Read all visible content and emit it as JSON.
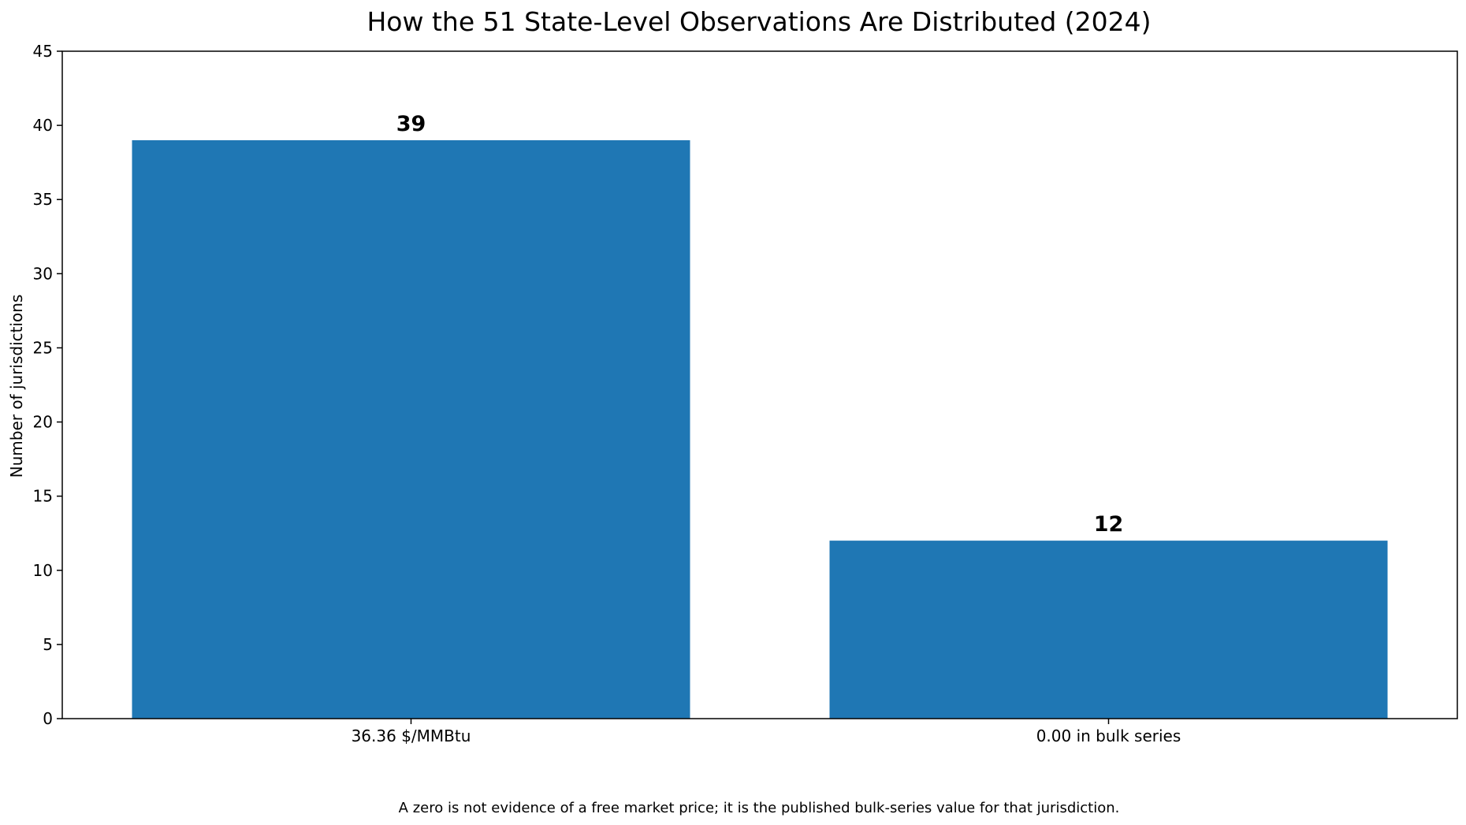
{
  "chart_data": {
    "type": "bar",
    "title": "How the 51 State-Level Observations Are Distributed (2024)",
    "xlabel": "",
    "ylabel": "Number of jurisdictions",
    "categories": [
      "36.36 $/MMBtu",
      "0.00 in bulk series"
    ],
    "values": [
      39,
      12
    ],
    "data_labels": [
      "39",
      "12"
    ],
    "ylim": [
      0,
      45
    ],
    "yticks": [
      0,
      5,
      10,
      15,
      20,
      25,
      30,
      35,
      40,
      45
    ],
    "grid": false,
    "legend": "none",
    "bar_color": "#1f77b4",
    "footnote": "A zero is not evidence of a free market price; it is the published bulk-series value for that jurisdiction."
  }
}
